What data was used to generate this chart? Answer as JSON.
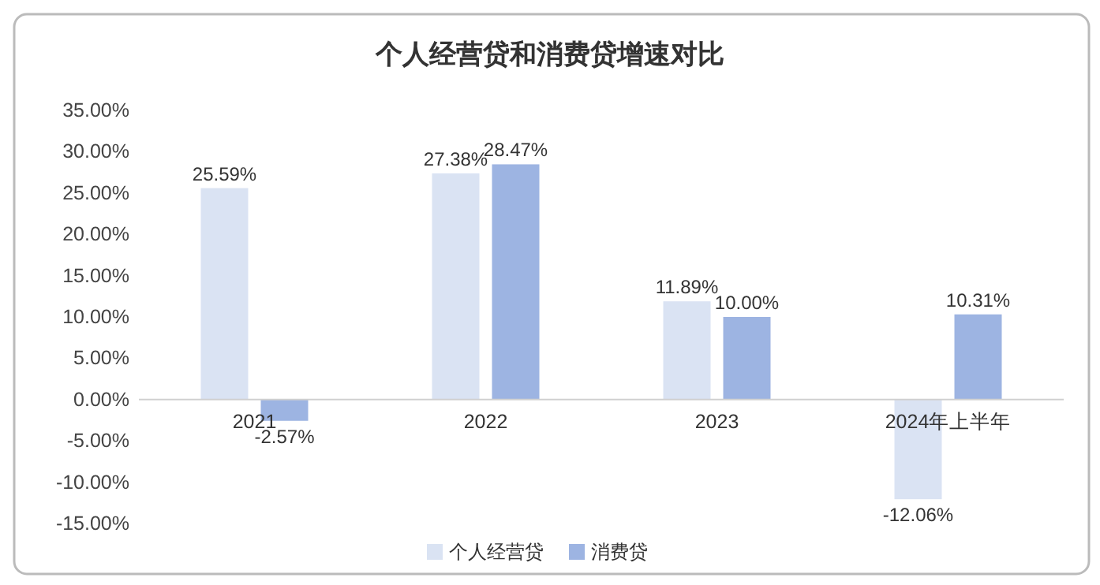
{
  "chart_data": {
    "type": "bar",
    "title": "个人经营贷和消费贷增速对比",
    "categories": [
      "2021",
      "2022",
      "2023",
      "2024年上半年"
    ],
    "series": [
      {
        "name": "个人经营贷",
        "color": "#dae3f3",
        "values": [
          25.59,
          27.38,
          11.89,
          -12.06
        ],
        "value_labels": [
          "25.59%",
          "27.38%",
          "11.89%",
          "-12.06%"
        ]
      },
      {
        "name": "消费贷",
        "color": "#9db4e2",
        "values": [
          -2.57,
          28.47,
          10.0,
          10.31
        ],
        "value_labels": [
          "-2.57%",
          "28.47%",
          "10.00%",
          "10.31%"
        ]
      }
    ],
    "ylim": [
      -15,
      35
    ],
    "yticks": [
      {
        "value": -15,
        "label": "-15.00%"
      },
      {
        "value": -10,
        "label": "-10.00%"
      },
      {
        "value": -5,
        "label": "-5.00%"
      },
      {
        "value": 0,
        "label": "0.00%"
      },
      {
        "value": 5,
        "label": "5.00%"
      },
      {
        "value": 10,
        "label": "10.00%"
      },
      {
        "value": 15,
        "label": "15.00%"
      },
      {
        "value": 20,
        "label": "20.00%"
      },
      {
        "value": 25,
        "label": "25.00%"
      },
      {
        "value": 30,
        "label": "30.00%"
      },
      {
        "value": 35,
        "label": "35.00%"
      }
    ],
    "grid": false,
    "legend": "bottom"
  }
}
